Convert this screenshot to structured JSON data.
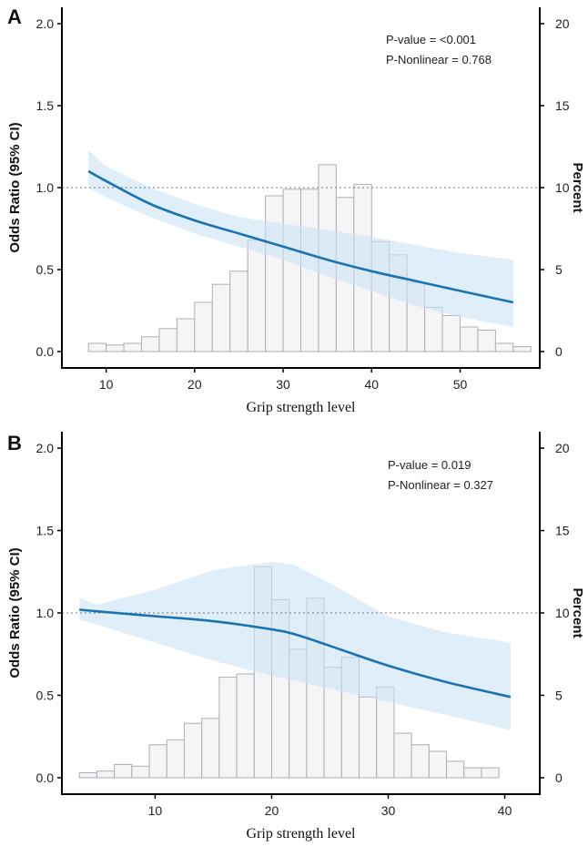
{
  "chart_data": [
    {
      "type": "line",
      "panel_label": "A",
      "xlabel": "Grip strength level",
      "ylabel": "Odds Ratio (95% CI)",
      "ylabel_right": "Percent",
      "xlim": [
        5,
        59
      ],
      "ylim": [
        -0.1,
        2.1
      ],
      "ylim_right": [
        -1,
        21
      ],
      "x_ticks": [
        10,
        20,
        30,
        40,
        50
      ],
      "y_ticks": [
        0.0,
        0.5,
        1.0,
        1.5,
        2.0
      ],
      "y_tick_labels": [
        "0.0",
        "0.5",
        "1.0",
        "1.5",
        "2.0"
      ],
      "y_right_ticks": [
        0,
        5,
        10,
        15,
        20
      ],
      "reference_line": 1.0,
      "annotations": [
        "P-value = <0.001",
        "P-Nonlinear = 0.768"
      ],
      "histogram": {
        "bin_start": 8,
        "bin_width": 2,
        "percents": [
          0.5,
          0.4,
          0.5,
          0.9,
          1.4,
          2.0,
          3.0,
          4.1,
          4.9,
          6.8,
          9.5,
          9.9,
          9.9,
          11.4,
          9.4,
          10.2,
          6.7,
          5.9,
          4.2,
          2.7,
          2.2,
          1.5,
          1.3,
          0.5,
          0.3
        ]
      },
      "or_curve": {
        "x": [
          8,
          10,
          15,
          20,
          25,
          30,
          35,
          40,
          45,
          50,
          56
        ],
        "or": [
          1.1,
          1.04,
          0.9,
          0.8,
          0.72,
          0.64,
          0.56,
          0.49,
          0.43,
          0.37,
          0.3
        ],
        "lower": [
          1.0,
          0.94,
          0.82,
          0.72,
          0.64,
          0.56,
          0.46,
          0.37,
          0.28,
          0.21,
          0.15
        ],
        "upper": [
          1.23,
          1.13,
          1.0,
          0.9,
          0.82,
          0.78,
          0.74,
          0.7,
          0.65,
          0.6,
          0.56
        ]
      }
    },
    {
      "type": "line",
      "panel_label": "B",
      "xlabel": "Grip strength level",
      "ylabel": "Odds Ratio (95% CI)",
      "ylabel_right": "Percent",
      "xlim": [
        2,
        43
      ],
      "ylim": [
        -0.1,
        2.1
      ],
      "ylim_right": [
        -1,
        21
      ],
      "x_ticks": [
        10,
        20,
        30,
        40
      ],
      "y_ticks": [
        0.0,
        0.5,
        1.0,
        1.5,
        2.0
      ],
      "y_tick_labels": [
        "0.0",
        "0.5",
        "1.0",
        "1.5",
        "2.0"
      ],
      "y_right_ticks": [
        0,
        5,
        10,
        15,
        20
      ],
      "reference_line": 1.0,
      "annotations": [
        "P-value = 0.019",
        "P-Nonlinear = 0.327"
      ],
      "histogram": {
        "bin_start": 3.5,
        "bin_width": 1.5,
        "percents": [
          0.3,
          0.4,
          0.8,
          0.7,
          2.0,
          2.3,
          3.3,
          3.6,
          6.1,
          6.3,
          12.8,
          10.8,
          7.8,
          10.9,
          6.7,
          7.3,
          4.9,
          5.5,
          2.7,
          2.0,
          1.6,
          1.0,
          0.6,
          0.6
        ]
      },
      "or_curve": {
        "x": [
          3.5,
          5,
          10,
          15,
          20,
          22,
          25,
          30,
          35,
          40.5
        ],
        "or": [
          1.02,
          1.01,
          0.98,
          0.95,
          0.9,
          0.87,
          0.8,
          0.68,
          0.58,
          0.49
        ],
        "lower": [
          0.96,
          0.93,
          0.82,
          0.71,
          0.62,
          0.59,
          0.54,
          0.46,
          0.38,
          0.29
        ],
        "upper": [
          1.09,
          1.05,
          1.14,
          1.26,
          1.31,
          1.29,
          1.18,
          0.98,
          0.88,
          0.82
        ]
      }
    }
  ]
}
